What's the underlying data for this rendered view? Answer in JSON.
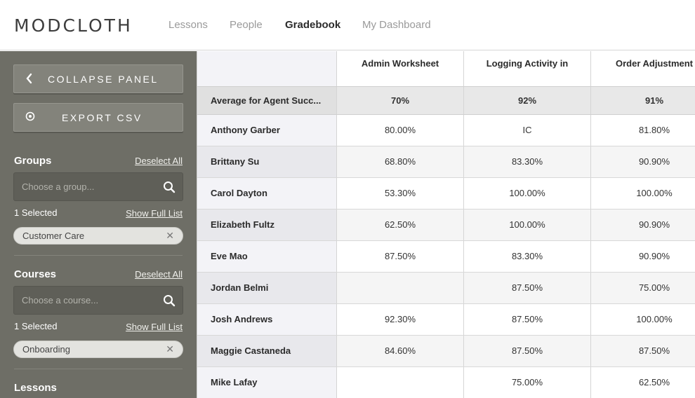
{
  "brand": {
    "logo": "MODCLOTH"
  },
  "nav": {
    "items": [
      {
        "label": "Lessons"
      },
      {
        "label": "People"
      },
      {
        "label": "Gradebook"
      },
      {
        "label": "My Dashboard"
      }
    ]
  },
  "sidebar": {
    "collapse_label": "COLLAPSE PANEL",
    "export_label": "EXPORT CSV",
    "groups": {
      "title": "Groups",
      "deselect": "Deselect All",
      "placeholder": "Choose a group...",
      "selected": "1 Selected",
      "show_full": "Show Full List",
      "chip": "Customer Care"
    },
    "courses": {
      "title": "Courses",
      "deselect": "Deselect All",
      "placeholder": "Choose a course...",
      "selected": "1 Selected",
      "show_full": "Show Full List",
      "chip": "Onboarding"
    },
    "lessons": {
      "title": "Lessons"
    }
  },
  "table": {
    "columns": [
      "Admin Worksheet",
      "Logging Activity in",
      "Order Adjustment"
    ],
    "average": {
      "label": "Average for Agent Succ...",
      "values": [
        "70%",
        "92%",
        "91%"
      ]
    },
    "rows": [
      {
        "name": "Anthony Garber",
        "values": [
          "80.00%",
          "IC",
          "81.80%"
        ]
      },
      {
        "name": "Brittany Su",
        "values": [
          "68.80%",
          "83.30%",
          "90.90%"
        ]
      },
      {
        "name": "Carol Dayton",
        "values": [
          "53.30%",
          "100.00%",
          "100.00%"
        ]
      },
      {
        "name": "Elizabeth Fultz",
        "values": [
          "62.50%",
          "100.00%",
          "90.90%"
        ]
      },
      {
        "name": "Eve Mao",
        "values": [
          "87.50%",
          "83.30%",
          "90.90%"
        ]
      },
      {
        "name": "Jordan Belmi",
        "values": [
          "",
          "87.50%",
          "75.00%"
        ]
      },
      {
        "name": "Josh Andrews",
        "values": [
          "92.30%",
          "87.50%",
          "100.00%"
        ]
      },
      {
        "name": "Maggie Castaneda",
        "values": [
          "84.60%",
          "87.50%",
          "87.50%"
        ]
      },
      {
        "name": "Mike Lafay",
        "values": [
          "",
          "75.00%",
          "62.50%"
        ]
      }
    ]
  }
}
